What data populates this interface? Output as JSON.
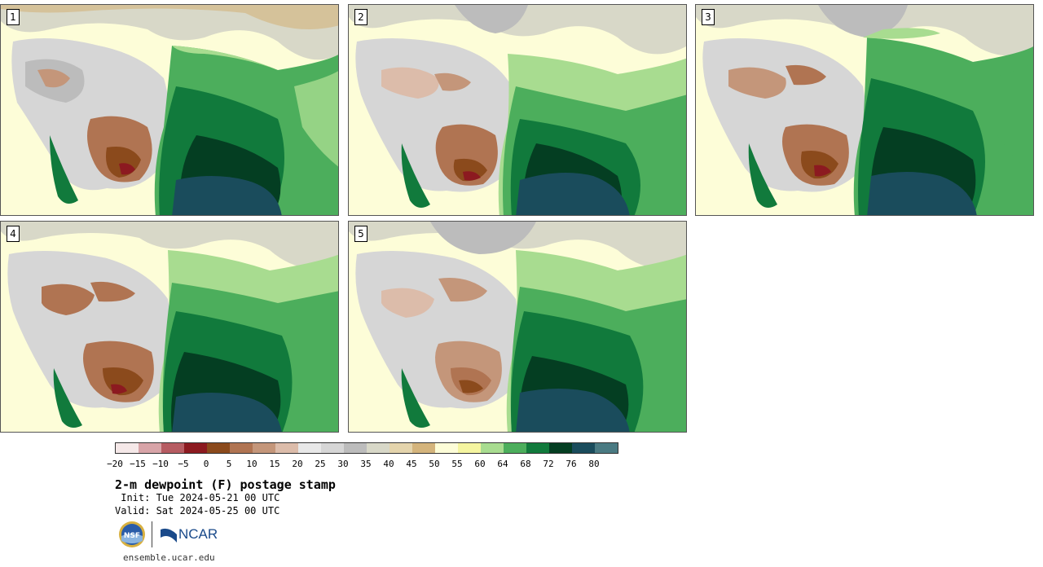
{
  "panels": [
    {
      "label": "1"
    },
    {
      "label": "2"
    },
    {
      "label": "3"
    },
    {
      "label": "4"
    },
    {
      "label": "5"
    }
  ],
  "colorbar": {
    "colors": [
      "#f5e8e8",
      "#d8a4a8",
      "#b65c62",
      "#8c1a20",
      "#8b4a1c",
      "#b07452",
      "#c4967a",
      "#dcbcaa",
      "#e8e8e8",
      "#d6d6d6",
      "#bcbcbc",
      "#d8d8c8",
      "#e4d4ac",
      "#d4b47c",
      "#fdfdd8",
      "#f5f5a0",
      "#a8dc90",
      "#4cae5c",
      "#117a3c",
      "#043e22",
      "#1a4c5c",
      "#4a7a82"
    ],
    "ticks": [
      "-20",
      "-15",
      "-10",
      "-5",
      "0",
      "5",
      "10",
      "15",
      "20",
      "25",
      "30",
      "35",
      "40",
      "45",
      "50",
      "55",
      "60",
      "64",
      "68",
      "72",
      "76",
      "80"
    ]
  },
  "title": "2-m dewpoint (F) postage stamp",
  "init": " Init: Tue 2024-05-21 00 UTC",
  "valid": "Valid: Sat 2024-05-25 00 UTC",
  "logos": {
    "left": "NSF",
    "right": "NCAR"
  },
  "url": "ensemble.ucar.edu"
}
